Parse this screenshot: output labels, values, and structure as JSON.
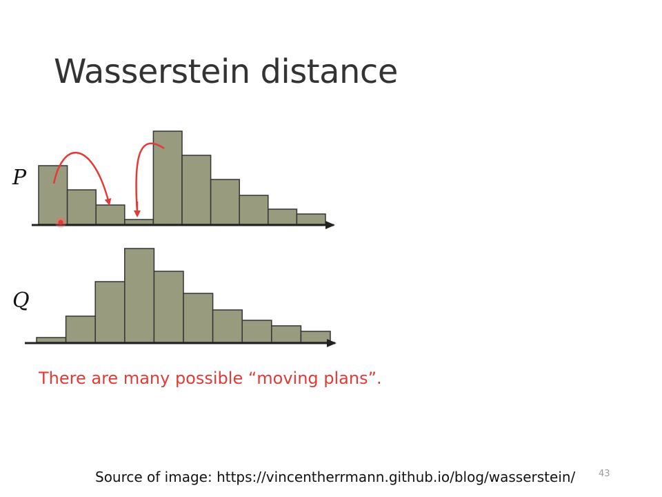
{
  "slide": {
    "title": "Wasserstein distance",
    "caption": "There are many possible “moving plans”.",
    "source": "Source of image: https://vincentherrmann.github.io/blog/wasserstein/",
    "page_number": "43"
  },
  "colors": {
    "bar_fill": "#999b7f",
    "bar_stroke": "#333333",
    "axis": "#222222",
    "arrow": "#e53935",
    "caption": "#e53935"
  },
  "chart_data": [
    {
      "type": "bar",
      "label": "P",
      "values": [
        85,
        50,
        28,
        7,
        135,
        100,
        65,
        42,
        22,
        15
      ]
    },
    {
      "type": "bar",
      "label": "Q",
      "values": [
        7,
        38,
        88,
        136,
        103,
        71,
        47,
        32,
        24,
        16
      ]
    }
  ],
  "moves": [
    {
      "from": "P bin 1",
      "to": "P bin 3"
    },
    {
      "from": "P bin 4",
      "to": "P bin 5"
    }
  ]
}
